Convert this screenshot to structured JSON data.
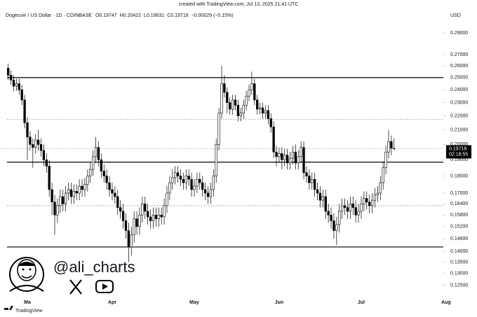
{
  "header": {
    "created": "created with TradingView.com, Jul 13, 2025 21:41 UTC",
    "symbol": "Dogecoin / US Dollar · 1D · COINBASE",
    "ohlc_labels": [
      "O0.19747",
      "H0.20422",
      "L0.19631",
      "C0.19718"
    ],
    "change": "−0.00029 (−0.15%)",
    "currency": "USD"
  },
  "chart_data": {
    "type": "candlestick",
    "log_scale": true,
    "xlim": [
      -3,
      159
    ],
    "xticks": [
      {
        "value": 7,
        "label": "Ma"
      },
      {
        "value": 38,
        "label": "Apr"
      },
      {
        "value": 68,
        "label": "May"
      },
      {
        "value": 99,
        "label": "Jun"
      },
      {
        "value": 129,
        "label": "Jul"
      },
      {
        "value": 160,
        "label": "Aug"
      }
    ],
    "ylim": [
      0.12,
      0.315
    ],
    "yticks": [
      {
        "value": 0.125,
        "label": "0.12500"
      },
      {
        "value": 0.13,
        "label": "0.13000"
      },
      {
        "value": 0.135,
        "label": "0.13500"
      },
      {
        "value": 0.14,
        "label": "0.14000"
      },
      {
        "value": 0.146,
        "label": "0.14600"
      },
      {
        "value": 0.152,
        "label": "0.15200"
      },
      {
        "value": 0.158,
        "label": "0.15800"
      },
      {
        "value": 0.164,
        "label": "0.16400"
      },
      {
        "value": 0.17,
        "label": "0.17000"
      },
      {
        "value": 0.18,
        "label": "0.18000"
      },
      {
        "value": 0.19,
        "label": "0.19000"
      },
      {
        "value": 0.2,
        "label": "0.20000"
      },
      {
        "value": 0.21,
        "label": "0.21000"
      },
      {
        "value": 0.22,
        "label": "0.22000"
      },
      {
        "value": 0.23,
        "label": "0.23000"
      },
      {
        "value": 0.24,
        "label": "0.24000"
      },
      {
        "value": 0.25,
        "label": "0.25000"
      },
      {
        "value": 0.26,
        "label": "0.26000"
      },
      {
        "value": 0.27,
        "label": "0.27000"
      },
      {
        "value": 0.29,
        "label": "0.29000"
      }
    ],
    "levels": [
      {
        "value": 0.25,
        "style": "solid"
      },
      {
        "value": 0.1885,
        "style": "solid"
      },
      {
        "value": 0.142,
        "style": "solid"
      },
      {
        "value": 0.2175,
        "style": "dotted"
      },
      {
        "value": 0.163,
        "style": "dotted"
      }
    ],
    "countdown": "02:18:55",
    "series": [
      {
        "up_color": "#ffffff",
        "down_color": "#000000",
        "open": [
          0.258,
          0.252,
          0.248,
          0.243,
          0.245,
          0.24,
          0.232,
          0.215,
          0.205,
          0.2,
          0.198,
          0.203,
          0.2,
          0.196,
          0.19,
          0.186,
          0.172,
          0.165,
          0.158,
          0.163,
          0.168,
          0.164,
          0.17,
          0.172,
          0.168,
          0.171,
          0.17,
          0.174,
          0.172,
          0.175,
          0.18,
          0.184,
          0.192,
          0.198,
          0.19,
          0.183,
          0.18,
          0.176,
          0.172,
          0.17,
          0.168,
          0.162,
          0.16,
          0.155,
          0.15,
          0.142,
          0.148,
          0.156,
          0.152,
          0.158,
          0.164,
          0.16,
          0.157,
          0.155,
          0.158,
          0.156,
          0.158,
          0.157,
          0.163,
          0.17,
          0.176,
          0.179,
          0.182,
          0.18,
          0.178,
          0.176,
          0.18,
          0.178,
          0.172,
          0.174,
          0.178,
          0.176,
          0.172,
          0.17,
          0.168,
          0.172,
          0.18,
          0.2,
          0.222,
          0.245,
          0.238,
          0.23,
          0.225,
          0.232,
          0.228,
          0.22,
          0.222,
          0.228,
          0.235,
          0.24,
          0.245,
          0.232,
          0.225,
          0.226,
          0.222,
          0.224,
          0.218,
          0.212,
          0.195,
          0.192,
          0.194,
          0.19,
          0.193,
          0.188,
          0.191,
          0.195,
          0.188,
          0.192,
          0.198,
          0.182,
          0.18,
          0.176,
          0.178,
          0.172,
          0.17,
          0.166,
          0.168,
          0.16,
          0.158,
          0.155,
          0.15,
          0.153,
          0.16,
          0.163,
          0.162,
          0.16,
          0.164,
          0.162,
          0.158,
          0.16,
          0.164,
          0.167,
          0.165,
          0.163,
          0.166,
          0.169,
          0.17,
          0.176,
          0.185,
          0.195,
          0.202,
          0.19747
        ],
        "high": [
          0.262,
          0.256,
          0.252,
          0.249,
          0.249,
          0.244,
          0.236,
          0.219,
          0.209,
          0.204,
          0.207,
          0.21,
          0.204,
          0.2,
          0.194,
          0.19,
          0.176,
          0.169,
          0.167,
          0.172,
          0.172,
          0.174,
          0.176,
          0.176,
          0.175,
          0.175,
          0.178,
          0.178,
          0.179,
          0.184,
          0.188,
          0.196,
          0.205,
          0.202,
          0.194,
          0.187,
          0.184,
          0.18,
          0.176,
          0.174,
          0.172,
          0.166,
          0.164,
          0.159,
          0.154,
          0.152,
          0.16,
          0.16,
          0.162,
          0.168,
          0.168,
          0.164,
          0.161,
          0.162,
          0.162,
          0.162,
          0.162,
          0.167,
          0.174,
          0.18,
          0.184,
          0.186,
          0.186,
          0.184,
          0.182,
          0.184,
          0.184,
          0.182,
          0.178,
          0.182,
          0.182,
          0.18,
          0.176,
          0.174,
          0.176,
          0.184,
          0.204,
          0.226,
          0.26,
          0.252,
          0.242,
          0.234,
          0.236,
          0.236,
          0.232,
          0.226,
          0.232,
          0.239,
          0.244,
          0.255,
          0.249,
          0.236,
          0.23,
          0.23,
          0.228,
          0.228,
          0.222,
          0.216,
          0.199,
          0.198,
          0.198,
          0.197,
          0.197,
          0.195,
          0.199,
          0.2,
          0.196,
          0.202,
          0.202,
          0.186,
          0.184,
          0.182,
          0.182,
          0.176,
          0.174,
          0.172,
          0.172,
          0.164,
          0.162,
          0.159,
          0.157,
          0.164,
          0.167,
          0.167,
          0.166,
          0.168,
          0.168,
          0.166,
          0.164,
          0.168,
          0.171,
          0.171,
          0.169,
          0.17,
          0.173,
          0.174,
          0.18,
          0.189,
          0.199,
          0.21,
          0.206,
          0.20422
        ],
        "low": [
          0.248,
          0.244,
          0.239,
          0.239,
          0.236,
          0.228,
          0.211,
          0.19,
          0.196,
          0.185,
          0.194,
          0.196,
          0.192,
          0.186,
          0.182,
          0.168,
          0.158,
          0.148,
          0.154,
          0.159,
          0.16,
          0.16,
          0.166,
          0.164,
          0.164,
          0.166,
          0.166,
          0.168,
          0.168,
          0.171,
          0.176,
          0.18,
          0.188,
          0.186,
          0.179,
          0.176,
          0.172,
          0.168,
          0.166,
          0.164,
          0.158,
          0.156,
          0.151,
          0.146,
          0.135,
          0.138,
          0.144,
          0.148,
          0.148,
          0.154,
          0.156,
          0.153,
          0.151,
          0.151,
          0.152,
          0.152,
          0.153,
          0.153,
          0.159,
          0.166,
          0.172,
          0.175,
          0.176,
          0.174,
          0.172,
          0.172,
          0.174,
          0.168,
          0.168,
          0.17,
          0.172,
          0.168,
          0.166,
          0.164,
          0.164,
          0.168,
          0.176,
          0.196,
          0.218,
          0.234,
          0.222,
          0.221,
          0.221,
          0.224,
          0.216,
          0.216,
          0.218,
          0.224,
          0.231,
          0.236,
          0.228,
          0.221,
          0.221,
          0.218,
          0.218,
          0.214,
          0.208,
          0.191,
          0.186,
          0.188,
          0.184,
          0.186,
          0.184,
          0.184,
          0.187,
          0.184,
          0.184,
          0.188,
          0.178,
          0.176,
          0.172,
          0.172,
          0.168,
          0.166,
          0.162,
          0.162,
          0.156,
          0.154,
          0.151,
          0.146,
          0.143,
          0.149,
          0.156,
          0.158,
          0.156,
          0.156,
          0.158,
          0.154,
          0.154,
          0.156,
          0.16,
          0.161,
          0.159,
          0.159,
          0.162,
          0.165,
          0.166,
          0.172,
          0.181,
          0.191,
          0.193,
          0.19631
        ],
        "close": [
          0.252,
          0.248,
          0.243,
          0.245,
          0.24,
          0.232,
          0.215,
          0.205,
          0.2,
          0.198,
          0.203,
          0.2,
          0.196,
          0.19,
          0.186,
          0.172,
          0.165,
          0.158,
          0.163,
          0.168,
          0.164,
          0.17,
          0.172,
          0.168,
          0.171,
          0.17,
          0.174,
          0.172,
          0.175,
          0.18,
          0.184,
          0.192,
          0.198,
          0.19,
          0.183,
          0.18,
          0.176,
          0.172,
          0.17,
          0.168,
          0.162,
          0.16,
          0.155,
          0.15,
          0.142,
          0.148,
          0.156,
          0.152,
          0.158,
          0.164,
          0.16,
          0.157,
          0.155,
          0.158,
          0.156,
          0.158,
          0.157,
          0.163,
          0.17,
          0.176,
          0.179,
          0.182,
          0.18,
          0.178,
          0.176,
          0.18,
          0.178,
          0.172,
          0.174,
          0.178,
          0.176,
          0.172,
          0.17,
          0.168,
          0.172,
          0.18,
          0.2,
          0.222,
          0.245,
          0.238,
          0.23,
          0.225,
          0.232,
          0.228,
          0.22,
          0.222,
          0.228,
          0.235,
          0.24,
          0.245,
          0.232,
          0.225,
          0.226,
          0.222,
          0.224,
          0.218,
          0.212,
          0.195,
          0.192,
          0.194,
          0.19,
          0.193,
          0.188,
          0.191,
          0.195,
          0.188,
          0.192,
          0.198,
          0.182,
          0.18,
          0.176,
          0.178,
          0.172,
          0.17,
          0.166,
          0.168,
          0.16,
          0.158,
          0.155,
          0.15,
          0.153,
          0.16,
          0.163,
          0.162,
          0.16,
          0.164,
          0.162,
          0.158,
          0.16,
          0.164,
          0.167,
          0.165,
          0.163,
          0.166,
          0.169,
          0.17,
          0.176,
          0.185,
          0.195,
          0.202,
          0.19747,
          0.19718
        ]
      }
    ]
  },
  "watermark": {
    "handle": "@ali_charts",
    "brand": "TradingView"
  }
}
